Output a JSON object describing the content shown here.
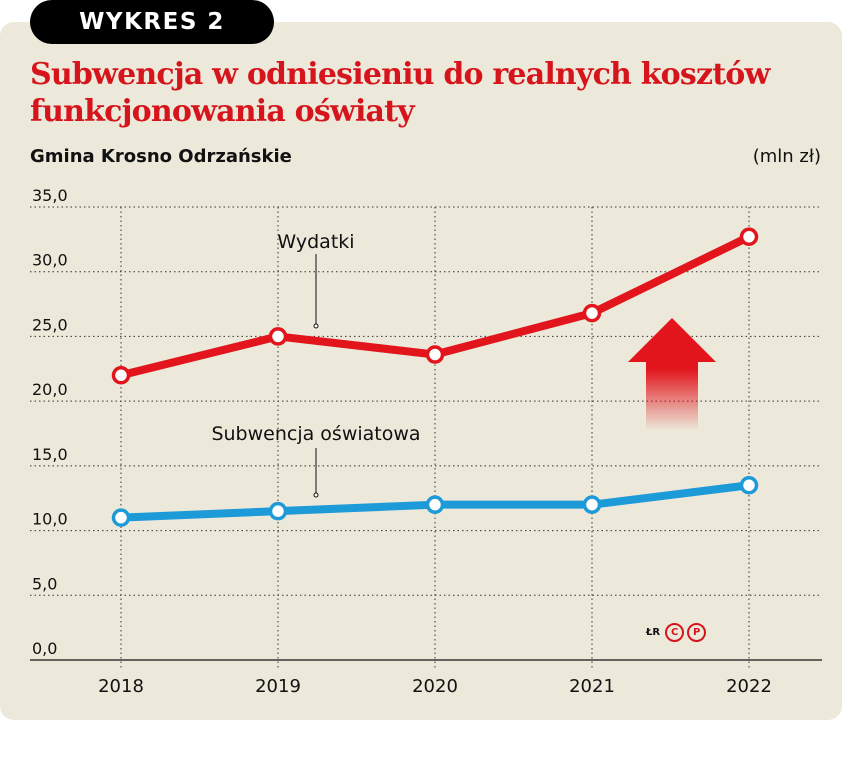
{
  "header": {
    "tag": "WYKRES 2",
    "title": "Subwencja w odniesieniu do realnych kosztów funkcjonowania oświaty",
    "subtitle": "Gmina Krosno Odrzańskie",
    "unit": "(mln zł)"
  },
  "credit": {
    "text": "ŁR",
    "logo_letters": [
      "C",
      "P"
    ]
  },
  "chart_data": {
    "type": "line",
    "title": "Subwencja w odniesieniu do realnych kosztów funkcjonowania oświaty",
    "subtitle": "Gmina Krosno Odrzańskie",
    "unit": "(mln zł)",
    "x": [
      "2018",
      "2019",
      "2020",
      "2021",
      "2022"
    ],
    "ylim": [
      0,
      35
    ],
    "y_ticks": [
      "0,0",
      "5,0",
      "10,0",
      "15,0",
      "20,0",
      "25,0",
      "30,0",
      "35,0"
    ],
    "grid": "dotted",
    "series": [
      {
        "name": "Wydatki",
        "values": [
          22.0,
          25.0,
          23.6,
          26.8,
          32.7
        ],
        "color": "#e2141c"
      },
      {
        "name": "Subwencja oświatowa",
        "values": [
          11.0,
          11.5,
          12.0,
          12.0,
          13.5
        ],
        "color": "#1d9ad8"
      }
    ],
    "annotation": "red-up-arrow"
  }
}
